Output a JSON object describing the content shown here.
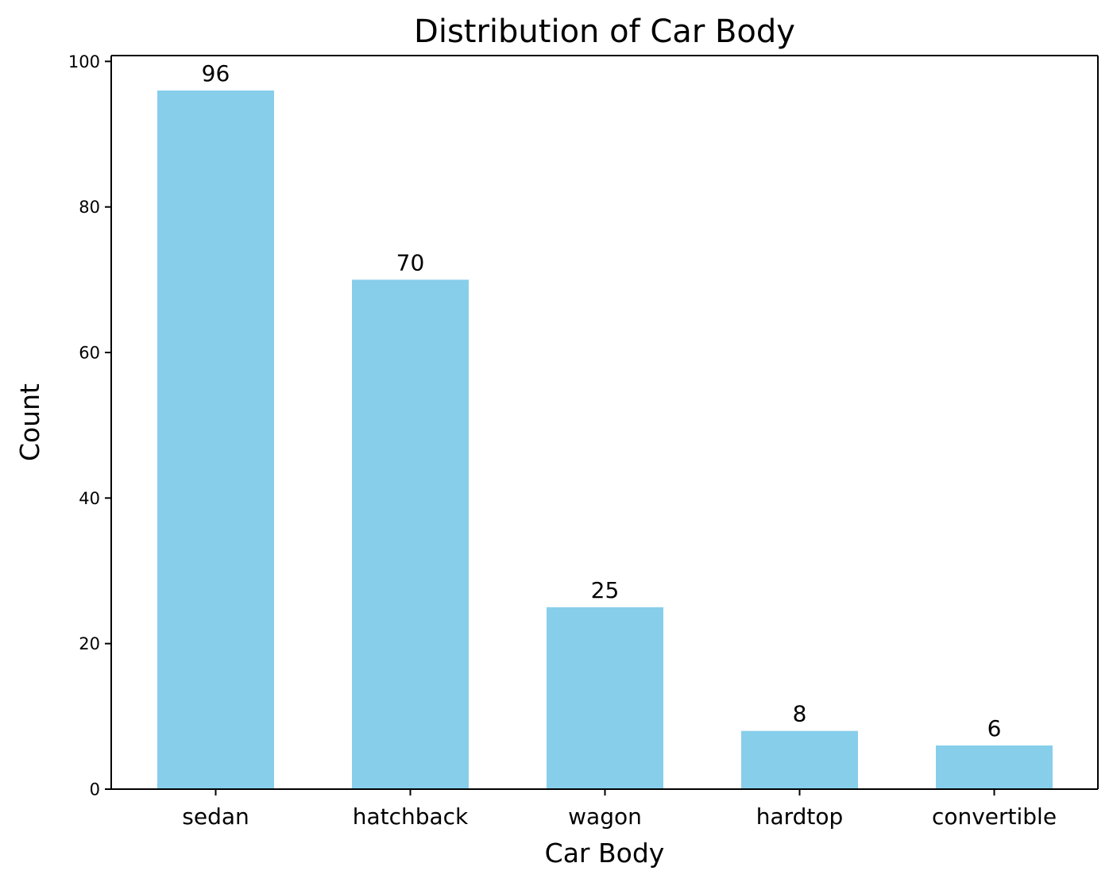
{
  "chart_data": {
    "type": "bar",
    "title": "Distribution of Car Body",
    "xlabel": "Car Body",
    "ylabel": "Count",
    "categories": [
      "sedan",
      "hatchback",
      "wagon",
      "hardtop",
      "convertible"
    ],
    "values": [
      96,
      70,
      25,
      8,
      6
    ],
    "data_labels": [
      "96",
      "70",
      "25",
      "8",
      "6"
    ],
    "ylim": [
      0,
      100.8
    ],
    "yticks": [
      0,
      20,
      40,
      60,
      80,
      100
    ],
    "ytick_labels": [
      "0",
      "20",
      "40",
      "60",
      "80",
      "100"
    ],
    "bar_color": "#87CEEB",
    "grid": false,
    "legend": "none"
  }
}
